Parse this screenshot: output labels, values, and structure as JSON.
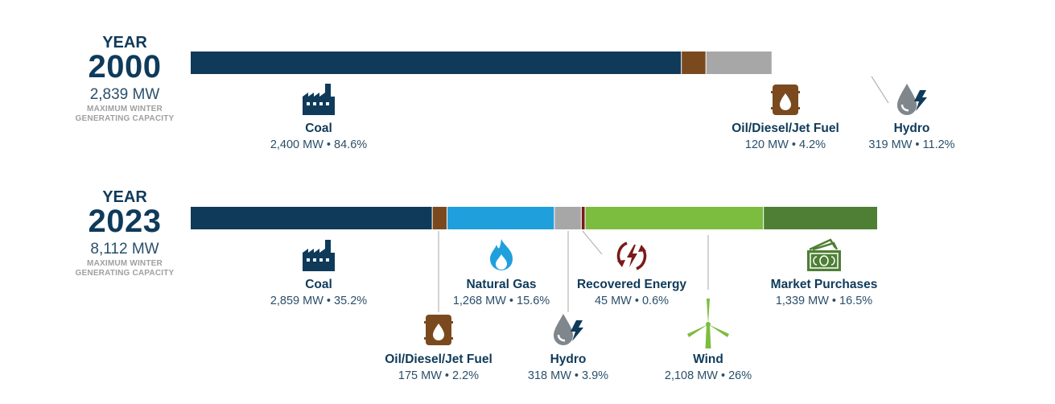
{
  "colors": {
    "coal": "#0f3a5a",
    "oil": "#7a4a1e",
    "gas": "#1fa0dc",
    "hydro": "#a7a7a7",
    "recovered": "#7a1a1a",
    "wind": "#7cbd3f",
    "market": "#4e7f35",
    "label": "#0f3a5a",
    "value": "#2a4f6b"
  },
  "chart_data": [
    {
      "type": "bar",
      "orientation": "horizontal-stacked",
      "year_label": "YEAR",
      "year": "2000",
      "total_text": "2,839 MW",
      "caption_line1": "MAXIMUM WINTER",
      "caption_line2": "GENERATING CAPACITY",
      "total_mw": 2839,
      "scale_max_mw": 3355,
      "segments": [
        {
          "key": "coal",
          "name": "Coal",
          "mw": 2400,
          "pct": 84.6,
          "value_text": "2,400 MW • 84.6%",
          "icon": "factory-icon"
        },
        {
          "key": "oil",
          "name": "Oil/Diesel/Jet Fuel",
          "mw": 120,
          "pct": 4.2,
          "value_text": "120 MW • 4.2%",
          "icon": "oil-barrel-icon"
        },
        {
          "key": "hydro",
          "name": "Hydro",
          "mw": 319,
          "pct": 11.2,
          "value_text": "319 MW • 11.2%",
          "icon": "hydro-drop-bolt-icon"
        }
      ]
    },
    {
      "type": "bar",
      "orientation": "horizontal-stacked",
      "year_label": "YEAR",
      "year": "2023",
      "total_text": "8,112 MW",
      "caption_line1": "MAXIMUM WINTER",
      "caption_line2": "GENERATING CAPACITY",
      "total_mw": 8112,
      "scale_max_mw": 8112,
      "segments": [
        {
          "key": "coal",
          "name": "Coal",
          "mw": 2859,
          "pct": 35.2,
          "value_text": "2,859 MW • 35.2%",
          "icon": "factory-icon"
        },
        {
          "key": "oil",
          "name": "Oil/Diesel/Jet Fuel",
          "mw": 175,
          "pct": 2.2,
          "value_text": "175 MW • 2.2%",
          "icon": "oil-barrel-icon"
        },
        {
          "key": "gas",
          "name": "Natural Gas",
          "mw": 1268,
          "pct": 15.6,
          "value_text": "1,268 MW • 15.6%",
          "icon": "gas-flame-icon"
        },
        {
          "key": "hydro",
          "name": "Hydro",
          "mw": 318,
          "pct": 3.9,
          "value_text": "318 MW • 3.9%",
          "icon": "hydro-drop-bolt-icon"
        },
        {
          "key": "recovered",
          "name": "Recovered Energy",
          "mw": 45,
          "pct": 0.6,
          "value_text": "45 MW • 0.6%",
          "icon": "recycle-bolt-icon"
        },
        {
          "key": "wind",
          "name": "Wind",
          "mw": 2108,
          "pct": 26,
          "value_text": "2,108 MW • 26%",
          "icon": "wind-turbine-icon"
        },
        {
          "key": "market",
          "name": "Market Purchases",
          "mw": 1339,
          "pct": 16.5,
          "value_text": "1,339 MW • 16.5%",
          "icon": "cash-icon"
        }
      ]
    }
  ]
}
